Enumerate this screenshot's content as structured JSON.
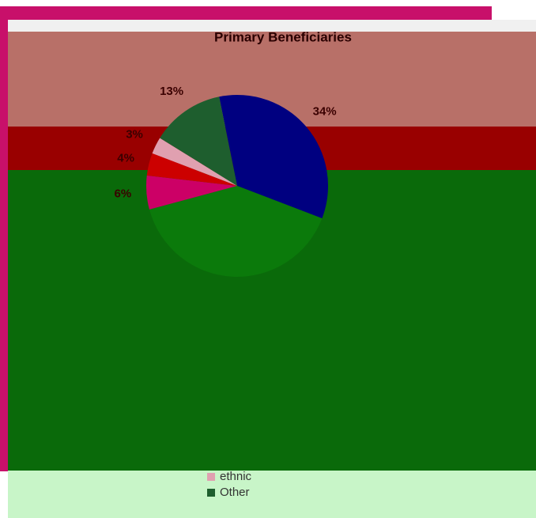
{
  "chart_data": {
    "type": "pie",
    "title": "Primary Beneficiaries",
    "categories": [
      null,
      null,
      null,
      null,
      "ethnic",
      "Other"
    ],
    "values": [
      34,
      40,
      6,
      4,
      3,
      13
    ],
    "value_labels": [
      "34%",
      null,
      "6%",
      "4%",
      "3%",
      "13%"
    ],
    "colors": [
      "#000080",
      "#0b7a0b",
      "#cc0066",
      "#cc0000",
      "#e0a0b0",
      "#1e5e2e"
    ]
  }
}
